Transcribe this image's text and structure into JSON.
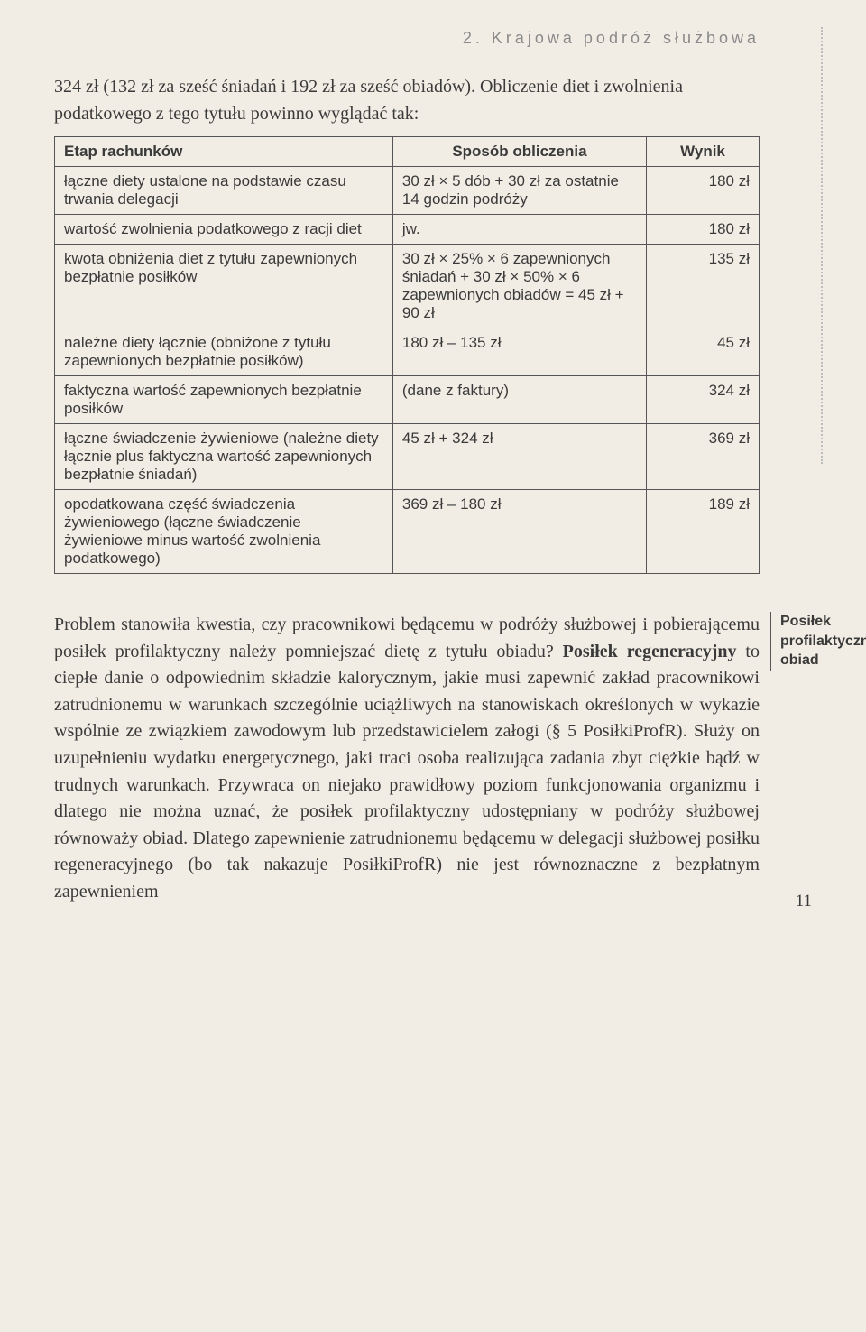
{
  "section_header": "2. Krajowa podróż służbowa",
  "intro_text": "324 zł (132 zł za sześć śniadań i 192 zł za sześć obiadów). Obliczenie diet i zwolnienia podatkowego z tego tytułu powinno wyglądać tak:",
  "table": {
    "columns": [
      "Etap rachunków",
      "Sposób obliczenia",
      "Wynik"
    ],
    "rows": [
      [
        "łączne diety ustalone na podstawie czasu trwania delegacji",
        "30 zł × 5 dób + 30 zł za ostatnie 14 godzin podróży",
        "180 zł"
      ],
      [
        "wartość zwolnienia podatkowego z racji diet",
        "jw.",
        "180 zł"
      ],
      [
        "kwota obniżenia diet z tytułu zapewnionych bezpłatnie posiłków",
        "30 zł × 25% × 6 zapewnionych śniadań + 30 zł × 50% × 6 zapewnionych obiadów = 45 zł + 90 zł",
        "135 zł"
      ],
      [
        "należne diety łącznie (obniżone z tytułu zapewnionych bezpłatnie posiłków)",
        "180 zł – 135 zł",
        "45 zł"
      ],
      [
        "faktyczna wartość zapewnionych bezpłatnie posiłków",
        "(dane z faktury)",
        "324 zł"
      ],
      [
        "łączne świadczenie żywieniowe (należne diety łącznie plus faktyczna wartość zapewnionych bezpłatnie śniadań)",
        "45 zł + 324 zł",
        "369 zł"
      ],
      [
        "opodatkowana część świadczenia żywieniowego (łączne świadczenie żywieniowe minus wartość zwolnienia podatkowego)",
        "369 zł – 180 zł",
        "189 zł"
      ]
    ]
  },
  "body": {
    "p1_a": "Problem stanowiła kwestia, czy pracownikowi będącemu w podróży służbowej i pobierającemu posiłek profilaktyczny należy pomniejszać dietę z tytułu obiadu? ",
    "p1_bold": "Posiłek regeneracyjny",
    "p1_b": " to ciepłe danie o odpowiednim składzie kalorycznym, jakie musi zapewnić zakład pracownikowi zatrudnionemu w warunkach szczególnie uciążliwych na stanowiskach określonych w wykazie wspólnie ze związkiem zawodowym lub przedstawicielem załogi (§ 5 PosiłkiProfR). Służy on uzupełnieniu wydatku energetycznego, jaki traci osoba realizująca zadania zbyt ciężkie bądź w trudnych warunkach. Przywraca on niejako prawidłowy poziom funkcjonowania organizmu i dlatego nie można uznać, że posiłek profilaktyczny udostępniany w podróży służbowej równoważy obiad. Dlatego zapewnienie zatrudnionemu będącemu w delegacji służbowej posiłku regeneracyjnego (bo tak nakazuje PosiłkiProfR) nie jest równoznaczne z bezpłatnym zapewnieniem"
  },
  "side_note": "Posiłek profilaktyczny a obiad",
  "page_number": "11"
}
